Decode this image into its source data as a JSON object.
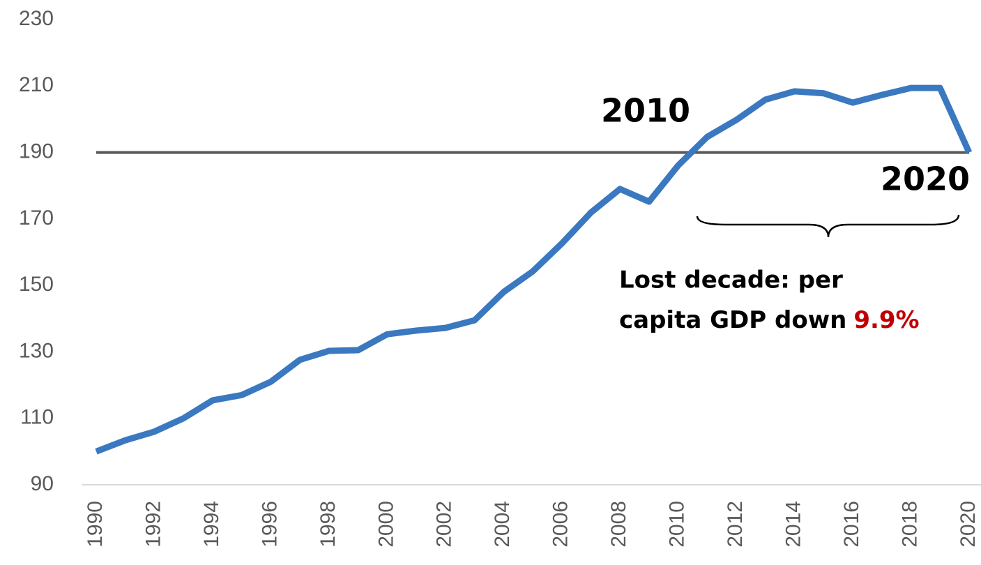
{
  "chart_data": {
    "type": "line",
    "x": [
      1990,
      1991,
      1992,
      1993,
      1994,
      1995,
      1996,
      1997,
      1998,
      1999,
      2000,
      2001,
      2002,
      2003,
      2004,
      2005,
      2006,
      2007,
      2008,
      2009,
      2010,
      2011,
      2012,
      2013,
      2014,
      2015,
      2016,
      2017,
      2018,
      2019,
      2020
    ],
    "series": [
      {
        "color": "#3a78c0",
        "values": [
          100,
          103.4,
          106,
          110,
          115.4,
          117,
          121,
          127.6,
          130.3,
          130.5,
          135.3,
          136.4,
          137.2,
          139.5,
          148,
          154.2,
          162.6,
          171.9,
          179,
          175.2,
          186.1,
          194.7,
          199.8,
          205.9,
          208.4,
          207.8,
          205,
          207.3,
          209.4,
          209.4,
          190
        ]
      }
    ],
    "reference_line": {
      "value": 190,
      "color": "#595959"
    },
    "xlim": [
      1990,
      2020
    ],
    "xticks": [
      1990,
      1992,
      1994,
      1996,
      1998,
      2000,
      2002,
      2004,
      2006,
      2008,
      2010,
      2012,
      2014,
      2016,
      2018,
      2020
    ],
    "ylim": [
      90,
      230
    ],
    "yticks": [
      90,
      110,
      130,
      150,
      170,
      190,
      210,
      230
    ],
    "grid": false,
    "annotations": [
      "2010",
      "2020"
    ],
    "note_lines": [
      "Lost decade: per",
      "capita GDP down"
    ],
    "highlight": {
      "value": 9.9,
      "label": "9.9%",
      "color": "#c00000"
    }
  }
}
